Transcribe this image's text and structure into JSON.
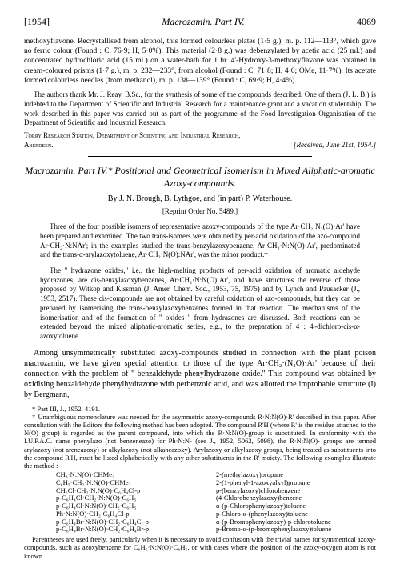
{
  "header": {
    "year": "[1954]",
    "running_title": "Macrozamin.    Part IV.",
    "page": "4069"
  },
  "intro_paragraph": "methoxyflavone. Recrystallised from alcohol, this formed colourless plates (1·5 g.), m. p. 112—113°, which gave no ferric colour (Found : C, 76·9; H, 5·0%). This material (2·8 g.) was debenzylated by acetic acid (25 ml.) and concentrated hydrochloric acid (15 ml.) on a water-bath for 1 hr. 4'-Hydroxy-3-methoxyflavone was obtained in cream-coloured prisms (1·7 g.), m. p. 232—233°, from alcohol (Found : C, 71·8; H, 4·6; OMe, 11·7%). Its acetate formed colourless needles (from methanol), m. p. 138—139° (Found : C, 69·9; H, 4·4%).",
  "acknowledgment": "The authors thank Mr. J. Reay, B.Sc., for the synthesis of some of the compounds described. One of them (J. L. B.) is indebted to the Department of Scientific and Industrial Research for a maintenance grant and a vacation studentship. The work described in this paper was carried out as part of the programme of the Food Investigation Organisation of the Department of Scientific and Industrial Research.",
  "affiliation": "Torry Research Station, Department of Scientific and Industrial Research, Aberdeen.",
  "received": "[Received, June 21st, 1954.]",
  "title": "Macrozamin.   Part IV.*   Positional and Geometrical Isomerism in Mixed Aliphatic-aromatic Azoxy-compounds.",
  "authors": "By J. N. Brough, B. Lythgoe, and (in part) P. Waterhouse.",
  "reprint": "[Reprint Order No. 5489.]",
  "abstract1": "Three of the four possible isomers of representative azoxy-compounds of the type Ar·CH₂·N₂(O)·Ar' have been prepared and examined. The two trans-isomers were obtained by per-acid oxidation of the azo-compound Ar·CH₂·N:NAr'; in the examples studied the trans-benzylazoxybenzene, Ar·CH₂·N:N(O)·Ar', predominated and the trans-α-arylazoxytoluene, Ar·CH₂·N(O):NAr', was the minor product.†",
  "abstract2": "The \" hydrazone oxides,\" i.e., the high-melting products of per-acid oxidation of aromatic aldehyde hydrazones, are cis-benzylazoxybenzenes, Ar·CH₂·N:N(O)·Ar', and have structures the reverse of those proposed by Witkop and Kissman (J. Amer. Chem. Soc., 1953, 75, 1975) and by Lynch and Pausacker (J., 1953, 2517). These cis-compounds are not obtained by careful oxidation of azo-compounds, but they can be prepared by isomerising the trans-benzylazoxybenzenes formed in that reaction. The mechanisms of the isomerisation and of the formation of \" oxides \" from hydrazones are discussed. Both reactions can be extended beyond the mixed aliphatic-aromatic series, e.g., to the preparation of 4 : 4'-dichloro-cis-α-azoxytoluene.",
  "body": "Among unsymmetrically substituted azoxy-compounds studied in connection with the plant poison macrozamin, we have given special attention to those of the type Ar·CH₂·(N₂O)·Ar' because of their connection with the problem of \" benzaldehyde phenylhydrazone oxide.\" This compound was obtained by oxidising benzaldehyde phenylhydrazone with perbenzoic acid, and was allotted the improbable structure (I) by Bergmann,",
  "footnote_star": "* Part III, J., 1952, 4191.",
  "footnote_dagger": "† Unambiguous nomenclature was needed for the asymmetric azoxy-compounds R·N:N(O)·R' described in this paper. After consultation with the Editors the following method has been adopted. The compound R'H (where R' is the residue attached to the N(O) group) is regarded as the parent compound, into which the R·N:N(O)-group is substituted. In conformity with the I.U.P.A.C. name phenylazo (not benzeneazo) for Ph·N:N- (see J., 1952, 5062, 5098), the R·N:N(O)- groups are termed arylazoxy (not areneazoxy) or alkylazoxy (not alkaneazoxy). Arylazoxy or alkylazoxy groups, being treated as substituents into the compound R'H, must be listed alphabetically with any other substituents in the R' moiety. The following examples illustrate the method :",
  "chem_left": [
    "CH₃·N:N(O)·CHMe₂",
    "C₆H₅·CH₂·N:N(O)·CHMe₂",
    "CH₂Cl·CH₂·N:N(O)·C₆H₄Cl-p",
    "p-C₆H₄Cl·CH₂·N:N(O)·C₆H₅",
    "p-C₆H₄Cl·N:N(O)·CH₂·C₆H₅",
    "Ph·N:N(O)·CH₂·C₆H₄Cl-p",
    "p-C₆H₄Br·N:N(O)·CH₂·C₆H₄Cl-p",
    "p-C₆H₄Br·N:N(O)·CH₂·C₆H₄Br-p"
  ],
  "chem_right": [
    "2-(methylazoxy)propane",
    "2-(1-phenyl-1-azoxyalkyl)propane",
    "p-(benzylazoxy)chlorobenzene",
    "(4-Chlorobenzylazoxy)benzene",
    "α-(p-Chlorophenylazoxy)toluene",
    "p-Chloro-α-(phenylazoxy)toluene",
    "α-(p-Bromophenylazoxy)-p-chlorotoluene",
    "p-Bromo-α-(p-bromophenylazoxy)toluene"
  ],
  "footnote_end": "Parentheses are used freely, particularly when it is necessary to avoid confusion with the trivial names for symmetrical azoxy-compounds, such as azoxybenzene for C₆H₅·N:N(O)·C₆H₅, or with cases where the position of the azoxy-oxygen atom is not known."
}
